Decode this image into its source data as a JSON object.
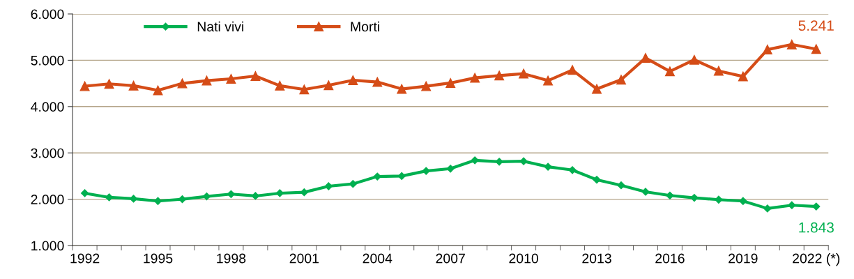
{
  "chart_data": {
    "type": "line",
    "categories": [
      "1992",
      null,
      null,
      "1995",
      null,
      null,
      "1998",
      null,
      null,
      "2001",
      null,
      null,
      "2004",
      null,
      null,
      "2007",
      null,
      null,
      "2010",
      null,
      null,
      "2013",
      null,
      null,
      "2016",
      null,
      null,
      "2019",
      null,
      null,
      "2022 (*)"
    ],
    "series": [
      {
        "name": "Nati vivi",
        "color": "#00b050",
        "marker": "diamond",
        "values": [
          2130,
          2040,
          2010,
          1960,
          2000,
          2060,
          2110,
          2070,
          2130,
          2150,
          2280,
          2330,
          2490,
          2500,
          2610,
          2660,
          2840,
          2810,
          2820,
          2700,
          2630,
          2420,
          2300,
          2160,
          2080,
          2030,
          1990,
          1960,
          1800,
          1870,
          1843
        ],
        "value_labels": [
          null,
          null,
          null,
          null,
          null,
          null,
          null,
          null,
          null,
          null,
          null,
          null,
          null,
          null,
          null,
          null,
          null,
          null,
          null,
          null,
          null,
          null,
          null,
          null,
          null,
          null,
          null,
          null,
          null,
          null,
          "1.843"
        ]
      },
      {
        "name": "Morti",
        "color": "#d54c17",
        "marker": "triangle",
        "values": [
          4440,
          4490,
          4450,
          4350,
          4500,
          4560,
          4600,
          4660,
          4450,
          4370,
          4460,
          4570,
          4530,
          4380,
          4440,
          4510,
          4620,
          4670,
          4710,
          4560,
          4790,
          4380,
          4580,
          5050,
          4760,
          5010,
          4770,
          4650,
          5230,
          5340,
          5241
        ],
        "value_labels": [
          null,
          null,
          null,
          null,
          null,
          null,
          null,
          null,
          null,
          null,
          null,
          null,
          null,
          null,
          null,
          null,
          null,
          null,
          null,
          null,
          null,
          null,
          null,
          null,
          null,
          null,
          null,
          null,
          null,
          null,
          "5.241"
        ]
      }
    ],
    "ylim": [
      1000,
      6000
    ],
    "yticks": [
      {
        "value": 1000,
        "label": "1.000"
      },
      {
        "value": 2000,
        "label": "2.000"
      },
      {
        "value": 3000,
        "label": "3.000"
      },
      {
        "value": 4000,
        "label": "4.000"
      },
      {
        "value": 5000,
        "label": "5.000"
      },
      {
        "value": 6000,
        "label": "6.000"
      }
    ],
    "grid": "y",
    "legend": "top left",
    "line_style": "solid"
  }
}
